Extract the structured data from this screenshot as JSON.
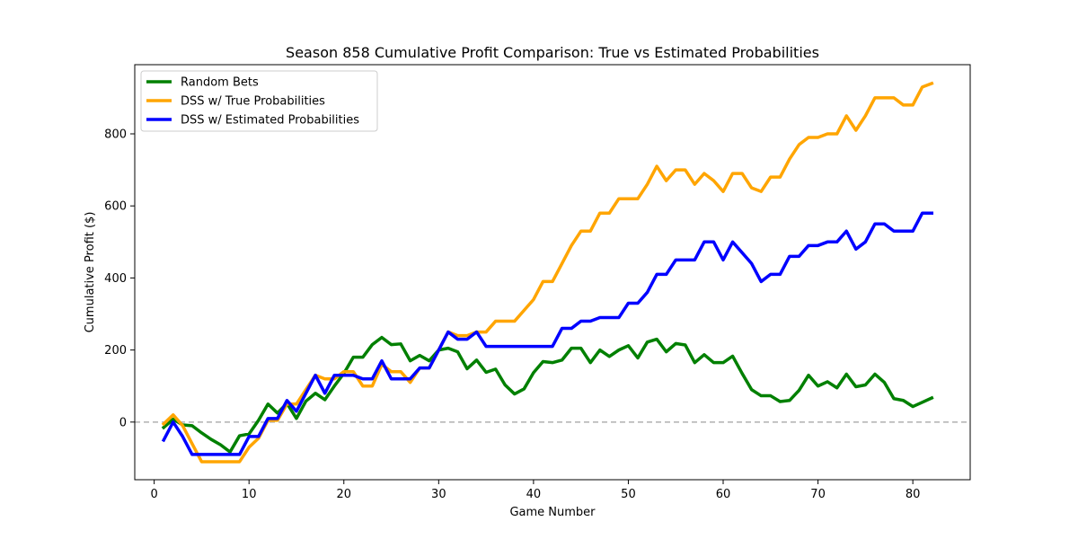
{
  "chart_data": {
    "type": "line",
    "title": "Season 858 Cumulative Profit Comparison: True vs Estimated Probabilities",
    "xlabel": "Game Number",
    "ylabel": "Cumulative Profit ($)",
    "xlim": [
      -2.05,
      86.05
    ],
    "ylim": [
      -160,
      992
    ],
    "xticks": [
      0,
      10,
      20,
      30,
      40,
      50,
      60,
      70,
      80
    ],
    "yticks": [
      0,
      200,
      400,
      600,
      800
    ],
    "grid": false,
    "legend_position": "top-left",
    "reference_line": {
      "y": 0,
      "style": "dashed",
      "color": "#b0b0b0"
    },
    "x": [
      1,
      2,
      3,
      4,
      5,
      6,
      7,
      8,
      9,
      10,
      11,
      12,
      13,
      14,
      15,
      16,
      17,
      18,
      19,
      20,
      21,
      22,
      23,
      24,
      25,
      26,
      27,
      28,
      29,
      30,
      31,
      32,
      33,
      34,
      35,
      36,
      37,
      38,
      39,
      40,
      41,
      42,
      43,
      44,
      45,
      46,
      47,
      48,
      49,
      50,
      51,
      52,
      53,
      54,
      55,
      56,
      57,
      58,
      59,
      60,
      61,
      62,
      63,
      64,
      65,
      66,
      67,
      68,
      69,
      70,
      71,
      72,
      73,
      74,
      75,
      76,
      77,
      78,
      79,
      80,
      81,
      82
    ],
    "series": [
      {
        "name": "Random Bets",
        "color": "#008000",
        "values": [
          -15,
          8,
          -8,
          -10,
          -30,
          -48,
          -63,
          -83,
          -38,
          -33,
          5,
          50,
          25,
          52,
          10,
          58,
          80,
          62,
          100,
          135,
          180,
          180,
          215,
          235,
          215,
          217,
          170,
          185,
          170,
          200,
          205,
          195,
          148,
          172,
          138,
          147,
          103,
          78,
          92,
          137,
          168,
          165,
          172,
          205,
          205,
          165,
          200,
          182,
          200,
          212,
          178,
          222,
          230,
          195,
          218,
          214,
          165,
          187,
          165,
          165,
          183,
          135,
          90,
          73,
          73,
          57,
          60,
          88,
          130,
          100,
          112,
          95,
          133,
          98,
          103,
          133,
          110,
          65,
          60,
          43,
          55,
          67
        ]
      },
      {
        "name": "DSS w/ True Probabilities",
        "color": "#ffa500",
        "values": [
          -5,
          20,
          -10,
          -60,
          -110,
          -110,
          -110,
          -110,
          -110,
          -70,
          -45,
          5,
          5,
          50,
          50,
          90,
          130,
          120,
          120,
          140,
          140,
          100,
          100,
          160,
          140,
          140,
          110,
          150,
          150,
          200,
          250,
          240,
          240,
          250,
          250,
          280,
          280,
          280,
          310,
          340,
          390,
          390,
          440,
          490,
          530,
          530,
          580,
          580,
          620,
          620,
          620,
          660,
          710,
          670,
          700,
          700,
          660,
          690,
          670,
          640,
          690,
          690,
          650,
          640,
          680,
          680,
          730,
          770,
          790,
          790,
          800,
          800,
          850,
          810,
          850,
          900,
          900,
          900,
          880,
          880,
          930,
          940
        ]
      },
      {
        "name": "DSS w/ Estimated Probabilities",
        "color": "#0000ff",
        "values": [
          -50,
          0,
          -40,
          -90,
          -90,
          -90,
          -90,
          -90,
          -90,
          -40,
          -40,
          10,
          10,
          60,
          30,
          80,
          130,
          80,
          130,
          130,
          130,
          120,
          120,
          170,
          120,
          120,
          120,
          150,
          150,
          200,
          250,
          230,
          230,
          250,
          210,
          210,
          210,
          210,
          210,
          210,
          210,
          210,
          260,
          260,
          280,
          280,
          290,
          290,
          290,
          330,
          330,
          360,
          410,
          410,
          450,
          450,
          450,
          500,
          500,
          450,
          500,
          470,
          440,
          390,
          410,
          410,
          460,
          460,
          490,
          490,
          500,
          500,
          530,
          480,
          500,
          550,
          550,
          530,
          530,
          530,
          580,
          580
        ]
      }
    ]
  }
}
